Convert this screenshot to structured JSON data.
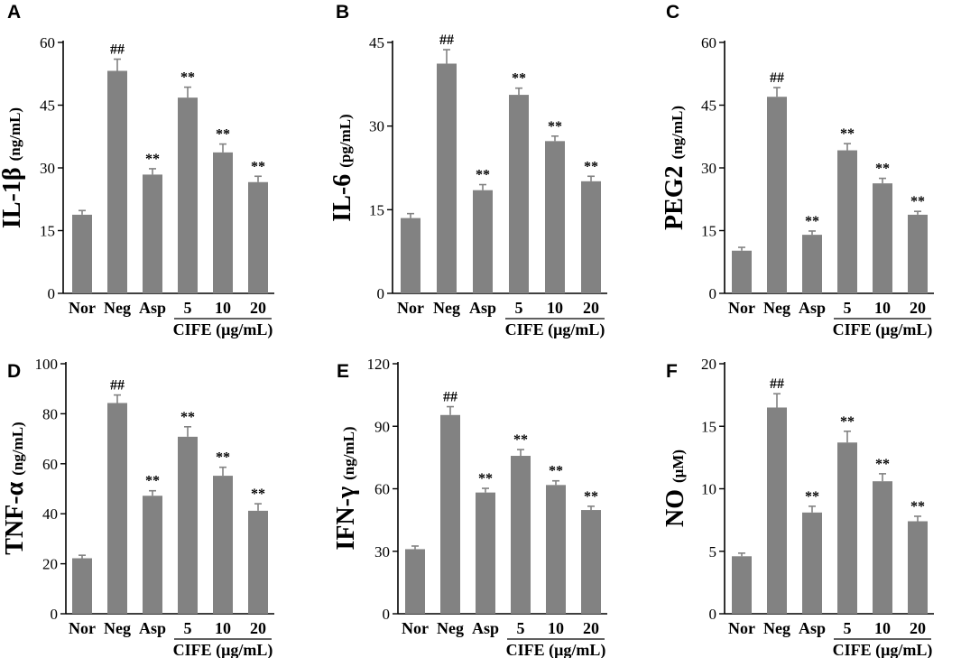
{
  "figure": {
    "categories": [
      "Nor",
      "Neg",
      "Asp",
      "5",
      "10",
      "20"
    ],
    "group_label": "CIFE (μg/mL)"
  },
  "chart_data": [
    {
      "type": "bar",
      "panel": "A",
      "ylabel_main": "IL-1β",
      "ylabel_unit": "(ng/mL)",
      "categories": [
        "Nor",
        "Neg",
        "Asp",
        "5",
        "10",
        "20"
      ],
      "values": [
        18.8,
        53.2,
        28.4,
        46.8,
        33.7,
        26.6
      ],
      "errors": [
        1.0,
        2.8,
        1.4,
        2.5,
        2.0,
        1.4
      ],
      "annotations": [
        "",
        "##",
        "**",
        "**",
        "**",
        "**"
      ],
      "ylim": [
        0,
        60
      ],
      "yticks": [
        0,
        15,
        30,
        45,
        60
      ],
      "yticklabels": [
        "0",
        "15",
        "30",
        "45",
        "60"
      ],
      "group_label": "CIFE (μg/mL)",
      "bar_color": "#828282"
    },
    {
      "type": "bar",
      "panel": "B",
      "ylabel_main": "IL-6",
      "ylabel_unit": "(pg/mL)",
      "categories": [
        "Nor",
        "Neg",
        "Asp",
        "5",
        "10",
        "20"
      ],
      "values": [
        13.5,
        41.2,
        18.5,
        35.6,
        27.3,
        20.1
      ],
      "errors": [
        0.8,
        2.5,
        1.0,
        1.2,
        0.9,
        0.9
      ],
      "annotations": [
        "",
        "##",
        "**",
        "**",
        "**",
        "**"
      ],
      "ylim": [
        0,
        45
      ],
      "yticks": [
        0,
        15,
        30,
        45
      ],
      "yticklabels": [
        "0",
        "15",
        "30",
        "45"
      ],
      "group_label": "CIFE (μg/mL)",
      "bar_color": "#828282"
    },
    {
      "type": "bar",
      "panel": "C",
      "ylabel_main": "PEG2",
      "ylabel_unit": "(ng/mL)",
      "categories": [
        "Nor",
        "Neg",
        "Asp",
        "5",
        "10",
        "20"
      ],
      "values": [
        10.2,
        47.0,
        14.0,
        34.2,
        26.3,
        18.8
      ],
      "errors": [
        0.8,
        2.2,
        0.9,
        1.6,
        1.2,
        0.8
      ],
      "annotations": [
        "",
        "##",
        "**",
        "**",
        "**",
        "**"
      ],
      "ylim": [
        0,
        60
      ],
      "yticks": [
        0,
        15,
        30,
        45,
        60
      ],
      "yticklabels": [
        "0",
        "15",
        "30",
        "45",
        "60"
      ],
      "group_label": "CIFE (μg/mL)",
      "bar_color": "#828282"
    },
    {
      "type": "bar",
      "panel": "D",
      "ylabel_main": "TNF-α",
      "ylabel_unit": "(ng/mL)",
      "categories": [
        "Nor",
        "Neg",
        "Asp",
        "5",
        "10",
        "20"
      ],
      "values": [
        22.2,
        84.3,
        47.2,
        70.8,
        55.2,
        41.2
      ],
      "errors": [
        1.2,
        3.2,
        2.0,
        4.0,
        3.4,
        2.8
      ],
      "annotations": [
        "",
        "##",
        "**",
        "**",
        "**",
        "**"
      ],
      "ylim": [
        0,
        100
      ],
      "yticks": [
        0,
        20,
        40,
        60,
        80,
        100
      ],
      "yticklabels": [
        "0",
        "20",
        "40",
        "60",
        "80",
        "100"
      ],
      "group_label": "CIFE (μg/mL)",
      "bar_color": "#828282"
    },
    {
      "type": "bar",
      "panel": "E",
      "ylabel_main": "IFN-γ",
      "ylabel_unit": "(ng/mL)",
      "categories": [
        "Nor",
        "Neg",
        "Asp",
        "5",
        "10",
        "20"
      ],
      "values": [
        31.0,
        95.4,
        58.2,
        75.8,
        61.8,
        49.8
      ],
      "errors": [
        1.5,
        4.0,
        2.0,
        3.0,
        2.0,
        1.8
      ],
      "annotations": [
        "",
        "##",
        "**",
        "**",
        "**",
        "**"
      ],
      "ylim": [
        0,
        120
      ],
      "yticks": [
        0,
        30,
        60,
        90,
        120
      ],
      "yticklabels": [
        "0",
        "30",
        "60",
        "90",
        "120"
      ],
      "group_label": "CIFE (μg/mL)",
      "bar_color": "#828282"
    },
    {
      "type": "bar",
      "panel": "F",
      "ylabel_main": "NO",
      "ylabel_unit": "(μM)",
      "categories": [
        "Nor",
        "Neg",
        "Asp",
        "5",
        "10",
        "20"
      ],
      "values": [
        4.6,
        16.5,
        8.1,
        13.7,
        10.6,
        7.4
      ],
      "errors": [
        0.25,
        1.1,
        0.5,
        0.9,
        0.6,
        0.4
      ],
      "annotations": [
        "",
        "##",
        "**",
        "**",
        "**",
        "**"
      ],
      "ylim": [
        0,
        20
      ],
      "yticks": [
        0,
        5,
        10,
        15,
        20
      ],
      "yticklabels": [
        "0",
        "5",
        "10",
        "15",
        "20"
      ],
      "group_label": "CIFE (μg/mL)",
      "bar_color": "#828282"
    }
  ]
}
